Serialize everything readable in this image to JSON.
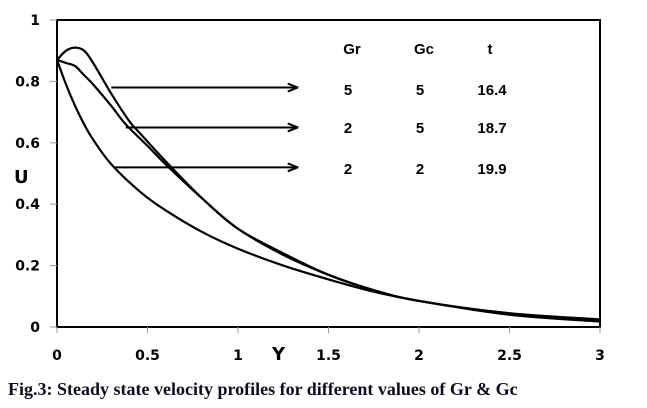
{
  "chart_data": {
    "type": "line",
    "title": "",
    "caption": "Fig.3: Steady state velocity profiles for different values of Gr & Gc",
    "xlabel": "Y",
    "ylabel": "U",
    "xlim": [
      0,
      3
    ],
    "ylim": [
      0,
      1
    ],
    "xticks": [
      "0",
      "0.5",
      "1",
      "1.5",
      "2",
      "2.5",
      "3"
    ],
    "xtick_values": [
      0,
      0.5,
      1,
      1.5,
      2,
      2.5,
      3
    ],
    "yticks": [
      "0",
      "0.2",
      "0.4",
      "0.6",
      "0.8",
      "1"
    ],
    "ytick_values": [
      0,
      0.2,
      0.4,
      0.6,
      0.8,
      1
    ],
    "grid": false,
    "legend": {
      "placement": "top-right",
      "headers": [
        "Gr",
        "Gc",
        "t"
      ],
      "rows": [
        {
          "Gr": "5",
          "Gc": "5",
          "t": "16.4"
        },
        {
          "Gr": "2",
          "Gc": "5",
          "t": "18.7"
        },
        {
          "Gr": "2",
          "Gc": "2",
          "t": "19.9"
        }
      ]
    },
    "series": [
      {
        "name": "Gr=5, Gc=5, t=16.4",
        "x": [
          0,
          0.05,
          0.1,
          0.15,
          0.2,
          0.3,
          0.4,
          0.46,
          0.6,
          0.8,
          1.0,
          1.25,
          1.5,
          1.75,
          2.0,
          2.5,
          3.0
        ],
        "y": [
          0.87,
          0.9,
          0.91,
          0.9,
          0.86,
          0.76,
          0.67,
          0.63,
          0.54,
          0.42,
          0.32,
          0.24,
          0.17,
          0.12,
          0.085,
          0.045,
          0.025
        ]
      },
      {
        "name": "Gr=2, Gc=5, t=18.7",
        "x": [
          0,
          0.05,
          0.1,
          0.15,
          0.2,
          0.3,
          0.38,
          0.5,
          0.6,
          0.8,
          1.0,
          1.25,
          1.5,
          1.75,
          2.0,
          2.5,
          3.0
        ],
        "y": [
          0.87,
          0.86,
          0.85,
          0.82,
          0.79,
          0.72,
          0.66,
          0.59,
          0.53,
          0.42,
          0.32,
          0.235,
          0.17,
          0.12,
          0.085,
          0.043,
          0.022
        ]
      },
      {
        "name": "Gr=2, Gc=2, t=19.9",
        "x": [
          0,
          0.05,
          0.1,
          0.15,
          0.2,
          0.3,
          0.46,
          0.6,
          0.8,
          1.0,
          1.25,
          1.5,
          1.75,
          2.0,
          2.5,
          3.0
        ],
        "y": [
          0.87,
          0.79,
          0.72,
          0.66,
          0.61,
          0.53,
          0.44,
          0.38,
          0.31,
          0.255,
          0.2,
          0.155,
          0.115,
          0.085,
          0.04,
          0.018
        ]
      }
    ],
    "annotations": [
      {
        "type": "arrow",
        "from": [
          0.3,
          0.78
        ],
        "to": [
          1.33,
          0.78
        ],
        "series": "Gr=5, Gc=5, t=16.4"
      },
      {
        "type": "arrow",
        "from": [
          0.38,
          0.65
        ],
        "to": [
          1.33,
          0.65
        ],
        "series": "Gr=2, Gc=5, t=18.7"
      },
      {
        "type": "arrow",
        "from": [
          0.32,
          0.52
        ],
        "to": [
          1.33,
          0.52
        ],
        "series": "Gr=2, Gc=2, t=19.9"
      }
    ]
  }
}
